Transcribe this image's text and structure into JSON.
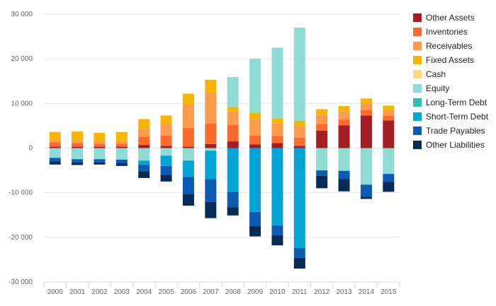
{
  "chart_data": {
    "type": "bar",
    "stacked": true,
    "categories": [
      "2000",
      "2001",
      "2002",
      "2003",
      "2004",
      "2005",
      "2006",
      "2007",
      "2008",
      "2009",
      "2010",
      "2011",
      "2012",
      "2013",
      "2014",
      "2015"
    ],
    "ylim": [
      -30000,
      30000
    ],
    "yticks": [
      -30000,
      -20000,
      -10000,
      0,
      10000,
      20000,
      30000
    ],
    "ytick_labels": [
      "-30 000",
      "-20 000",
      "-10 000",
      "0",
      "10 000",
      "20 000",
      "30 000"
    ],
    "grid": true,
    "legend_position": "right",
    "series": [
      {
        "name": "Other Assets",
        "color": "#a31d24",
        "values": [
          300,
          300,
          300,
          300,
          700,
          500,
          300,
          900,
          1500,
          800,
          1100,
          500,
          3900,
          5100,
          7300,
          6200
        ]
      },
      {
        "name": "Inventories",
        "color": "#fc6a2e",
        "values": [
          1000,
          800,
          700,
          700,
          1800,
          2300,
          4200,
          4600,
          3700,
          2000,
          1600,
          1800,
          1500,
          1300,
          1200,
          1000
        ]
      },
      {
        "name": "Receivables",
        "color": "#fd9a4c",
        "values": [
          500,
          600,
          600,
          600,
          1800,
          2500,
          5300,
          7000,
          3000,
          3700,
          2800,
          2600,
          2100,
          1700,
          1600,
          1200
        ]
      },
      {
        "name": "Fixed Assets",
        "color": "#f6b600",
        "values": [
          1800,
          2000,
          1800,
          2000,
          2200,
          2000,
          2400,
          2800,
          1000,
          1400,
          1200,
          1200,
          1200,
          1300,
          1000,
          1100
        ]
      },
      {
        "name": "Cash",
        "color": "#ffd980",
        "values": [
          0,
          0,
          0,
          0,
          0,
          0,
          0,
          0,
          0,
          0,
          0,
          0,
          0,
          0,
          0,
          0
        ]
      },
      {
        "name": "Equity",
        "color": "#8fdcd4",
        "values": [
          -2200,
          -2500,
          -2500,
          -2600,
          -2800,
          -1700,
          -2800,
          -600,
          6700,
          12100,
          15800,
          20900,
          -5000,
          -5100,
          -8200,
          -5800
        ]
      },
      {
        "name": "Long-Term Debt",
        "color": "#2cc1b1",
        "values": [
          0,
          0,
          0,
          0,
          0,
          0,
          0,
          0,
          0,
          0,
          0,
          0,
          0,
          0,
          0,
          0
        ]
      },
      {
        "name": "Short-Term Debt",
        "color": "#03a5d6",
        "values": [
          0,
          0,
          0,
          0,
          -900,
          -2300,
          -3700,
          -6300,
          -9800,
          -14300,
          -17300,
          -22400,
          0,
          0,
          0,
          0
        ]
      },
      {
        "name": "Trade Payables",
        "color": "#0b5bb4",
        "values": [
          -800,
          -700,
          -700,
          -800,
          -1500,
          -2000,
          -3800,
          -5200,
          -3500,
          -3200,
          -2200,
          -2200,
          -1200,
          -1800,
          -2700,
          -1800
        ]
      },
      {
        "name": "Other Liabilities",
        "color": "#062b56",
        "values": [
          -700,
          -600,
          -500,
          -600,
          -1500,
          -1500,
          -2600,
          -3600,
          -1800,
          -2300,
          -2300,
          -2400,
          -2800,
          -2800,
          -500,
          -2200
        ]
      }
    ]
  }
}
